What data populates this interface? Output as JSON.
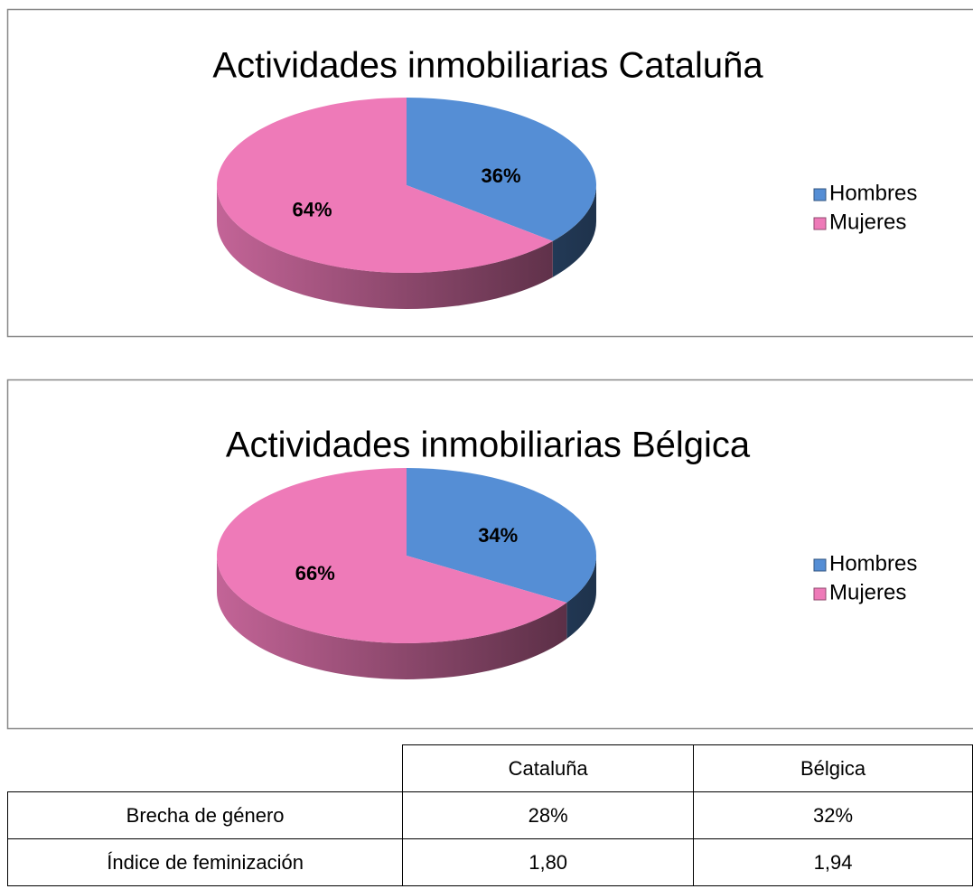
{
  "chart_data": [
    {
      "type": "pie",
      "title": "Actividades inmobiliarias Cataluña",
      "categories": [
        "Hombres",
        "Mujeres"
      ],
      "values": [
        36,
        64
      ],
      "value_labels": [
        "36%",
        "64%"
      ],
      "colors": [
        "#558ed5",
        "#ee7ab8"
      ],
      "legend": "right"
    },
    {
      "type": "pie",
      "title": "Actividades inmobiliarias Bélgica",
      "categories": [
        "Hombres",
        "Mujeres"
      ],
      "values": [
        34,
        66
      ],
      "value_labels": [
        "34%",
        "66%"
      ],
      "colors": [
        "#558ed5",
        "#ee7ab8"
      ],
      "legend": "right"
    }
  ],
  "table": {
    "header": [
      "Cataluña",
      "Bélgica"
    ],
    "rows": [
      [
        "Brecha de género",
        "28%",
        "32%"
      ],
      [
        "Índice de feminización",
        "1,80",
        "1,94"
      ]
    ]
  }
}
